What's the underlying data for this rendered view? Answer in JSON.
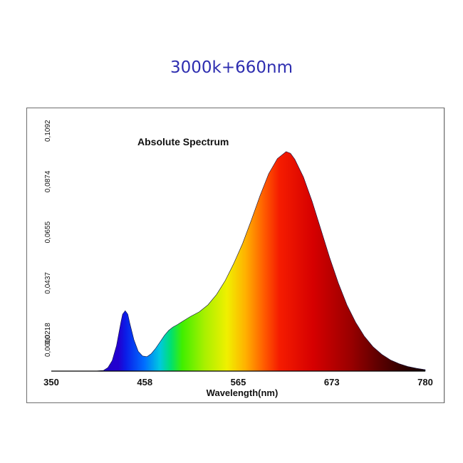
{
  "header": {
    "title": "3000k+660nm"
  },
  "chart_data": {
    "type": "area",
    "title": "Absolute Spectrum",
    "xlabel": "Wavelength(nm)",
    "ylabel": "",
    "xlim": [
      350,
      780
    ],
    "ylim": [
      0,
      0.1092
    ],
    "x_ticks": [
      "350",
      "458",
      "565",
      "673",
      "780"
    ],
    "y_ticks": [
      "0,0000",
      "0,0218",
      "0,0437",
      "0,0655",
      "0,0874",
      "0,1092"
    ],
    "series": [
      {
        "x": [
          350,
          380,
          400,
          410,
          415,
          420,
          425,
          430,
          432,
          435,
          438,
          440,
          445,
          450,
          455,
          460,
          465,
          470,
          475,
          480,
          485,
          490,
          495,
          500,
          510,
          520,
          530,
          540,
          550,
          560,
          570,
          580,
          590,
          600,
          610,
          620,
          625,
          630,
          640,
          650,
          660,
          670,
          680,
          690,
          700,
          710,
          720,
          730,
          740,
          750,
          760,
          770,
          780
        ],
        "y": [
          0,
          0,
          0,
          0.0003,
          0.0015,
          0.0045,
          0.011,
          0.021,
          0.0245,
          0.026,
          0.0245,
          0.021,
          0.0135,
          0.0085,
          0.0065,
          0.0062,
          0.0075,
          0.0098,
          0.0125,
          0.0153,
          0.0175,
          0.019,
          0.02,
          0.0212,
          0.0235,
          0.0255,
          0.0285,
          0.033,
          0.039,
          0.0465,
          0.055,
          0.065,
          0.0755,
          0.085,
          0.0915,
          0.0945,
          0.0938,
          0.0912,
          0.0835,
          0.073,
          0.061,
          0.049,
          0.038,
          0.0285,
          0.021,
          0.015,
          0.0105,
          0.0072,
          0.0048,
          0.0032,
          0.002,
          0.0012,
          0.0006
        ]
      }
    ],
    "fill": "visible-spectrum color gradient",
    "grid": false,
    "legend": "none"
  }
}
